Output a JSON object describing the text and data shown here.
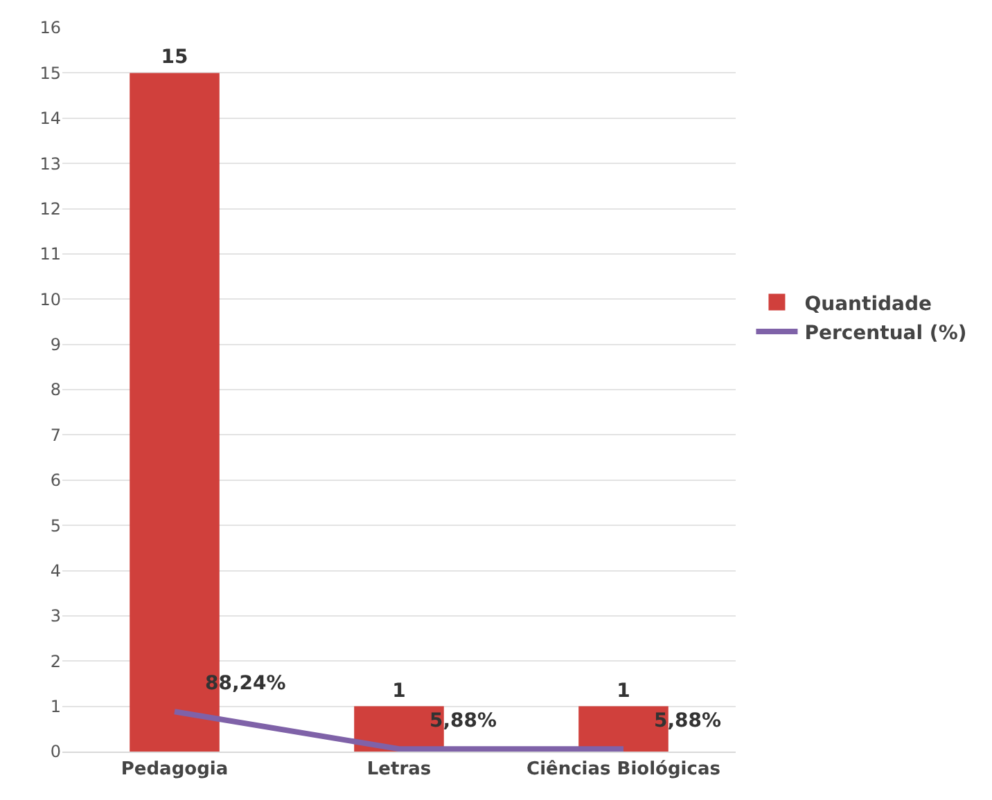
{
  "chart_data": {
    "type": "bar",
    "categories": [
      "Pedagogia",
      "Letras",
      "Ciências Biológicas"
    ],
    "series": [
      {
        "name": "Quantidade",
        "color": "#d0403c",
        "values": [
          15,
          1,
          1
        ],
        "value_labels": [
          "15",
          "1",
          "1"
        ]
      },
      {
        "name": "Percentual (%)",
        "type": "line",
        "color": "#7f62a8",
        "values": [
          0.8824,
          0.0588,
          0.0588
        ],
        "value_labels": [
          "88,24%",
          "5,88%",
          "5,88%"
        ]
      }
    ],
    "ylim": [
      0,
      16
    ],
    "yticks": [
      0,
      1,
      2,
      3,
      4,
      5,
      6,
      7,
      8,
      9,
      10,
      11,
      12,
      13,
      14,
      15,
      16
    ],
    "grid": "y",
    "legend": "right",
    "marker": "none",
    "line_style": "solid"
  }
}
